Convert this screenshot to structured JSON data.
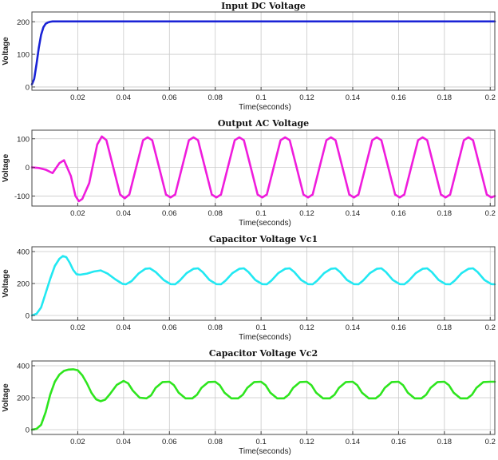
{
  "chart_data": [
    {
      "type": "line",
      "title": "Input DC Voltage",
      "xlabel": "Time(seconds)",
      "ylabel": "Voltage",
      "xlim": [
        0,
        0.202
      ],
      "ylim": [
        -10,
        230
      ],
      "xticks": [
        0.02,
        0.04,
        0.06,
        0.08,
        0.1,
        0.12,
        0.14,
        0.16,
        0.18,
        0.2
      ],
      "xtick_labels": [
        "0.02",
        "0.04",
        "0.06",
        "0.08",
        "0.1",
        "0.12",
        "0.14",
        "0.16",
        "0.18",
        "0.2"
      ],
      "yticks": [
        0,
        100,
        200
      ],
      "ytick_labels": [
        "0",
        "100",
        "200"
      ],
      "grid": true,
      "color": "#1a23d6",
      "series": [
        {
          "x": [
            0,
            0.001,
            0.002,
            0.003,
            0.004,
            0.005,
            0.006,
            0.007,
            0.008,
            0.009,
            0.01,
            0.012,
            0.015,
            0.05,
            0.1,
            0.15,
            0.202
          ],
          "y": [
            8,
            25,
            70,
            120,
            160,
            183,
            194,
            198,
            200,
            201,
            201,
            201,
            201,
            201,
            201,
            201,
            201
          ]
        }
      ]
    },
    {
      "type": "line",
      "title": "Output AC Voltage",
      "xlabel": "Time(seconds)",
      "ylabel": "Voltage",
      "xlim": [
        0,
        0.202
      ],
      "ylim": [
        -135,
        130
      ],
      "xticks": [
        0.02,
        0.04,
        0.06,
        0.08,
        0.1,
        0.12,
        0.14,
        0.16,
        0.18,
        0.2
      ],
      "xtick_labels": [
        "0.02",
        "0.04",
        "0.06",
        "0.08",
        "0.1",
        "0.12",
        "0.14",
        "0.16",
        "0.18",
        "0.2"
      ],
      "yticks": [
        -100,
        0,
        100
      ],
      "ytick_labels": [
        "-100",
        "0",
        "100"
      ],
      "grid": true,
      "color": "#ef1cdc",
      "series": [
        {
          "x": [
            0,
            0.003,
            0.006,
            0.009,
            0.012,
            0.014,
            0.017,
            0.019,
            0.0205,
            0.022,
            0.025,
            0.0285,
            0.0305,
            0.0325,
            0.0355,
            0.0385,
            0.0405,
            0.0425,
            0.0455,
            0.0485,
            0.0505,
            0.0525,
            0.0555,
            0.0585,
            0.0605,
            0.0625,
            0.0655,
            0.0685,
            0.0705,
            0.0725,
            0.0755,
            0.0785,
            0.0805,
            0.0825,
            0.0855,
            0.0885,
            0.0905,
            0.0925,
            0.0955,
            0.0985,
            0.1005,
            0.1025,
            0.1055,
            0.1085,
            0.1105,
            0.1125,
            0.1155,
            0.1185,
            0.1205,
            0.1225,
            0.1255,
            0.1285,
            0.1305,
            0.1325,
            0.1355,
            0.1385,
            0.1405,
            0.1425,
            0.1455,
            0.1485,
            0.1505,
            0.1525,
            0.1555,
            0.1585,
            0.1605,
            0.1625,
            0.1655,
            0.1685,
            0.1705,
            0.1725,
            0.1755,
            0.1785,
            0.1805,
            0.1825,
            0.1855,
            0.1885,
            0.1905,
            0.1925,
            0.1955,
            0.1985,
            0.2005,
            0.202
          ],
          "y": [
            0,
            -2,
            -8,
            -20,
            15,
            25,
            -30,
            -100,
            -118,
            -110,
            -55,
            80,
            108,
            95,
            0,
            -95,
            -108,
            -95,
            0,
            95,
            105,
            95,
            0,
            -95,
            -105,
            -95,
            0,
            95,
            105,
            95,
            0,
            -95,
            -105,
            -95,
            0,
            95,
            105,
            95,
            0,
            -95,
            -105,
            -95,
            0,
            95,
            105,
            95,
            0,
            -95,
            -105,
            -95,
            0,
            95,
            105,
            95,
            0,
            -95,
            -105,
            -95,
            0,
            95,
            105,
            95,
            0,
            -95,
            -105,
            -95,
            0,
            95,
            105,
            95,
            0,
            -95,
            -105,
            -95,
            0,
            95,
            105,
            95,
            0,
            -95,
            -105,
            -100
          ]
        }
      ]
    },
    {
      "type": "line",
      "title": "Capacitor Voltage Vc1",
      "xlabel": "Time(seconds)",
      "ylabel": "Voltage",
      "xlim": [
        0,
        0.202
      ],
      "ylim": [
        -30,
        430
      ],
      "xticks": [
        0.02,
        0.04,
        0.06,
        0.08,
        0.1,
        0.12,
        0.14,
        0.16,
        0.18,
        0.2
      ],
      "xtick_labels": [
        "0.02",
        "0.04",
        "0.06",
        "0.08",
        "0.1",
        "0.12",
        "0.14",
        "0.16",
        "0.18",
        "0.2"
      ],
      "yticks": [
        0,
        200,
        400
      ],
      "ytick_labels": [
        "0",
        "200",
        "400"
      ],
      "grid": true,
      "color": "#22e8f2",
      "series": [
        {
          "x": [
            0,
            0.002,
            0.004,
            0.006,
            0.008,
            0.01,
            0.012,
            0.0135,
            0.015,
            0.0165,
            0.018,
            0.0195,
            0.021,
            0.024,
            0.027,
            0.03,
            0.033,
            0.0365,
            0.0395,
            0.041,
            0.0435,
            0.0465,
            0.0495,
            0.0515,
            0.054,
            0.0575,
            0.0605,
            0.0625,
            0.0645,
            0.0675,
            0.0705,
            0.0725,
            0.0745,
            0.0775,
            0.0805,
            0.0825,
            0.0845,
            0.0875,
            0.0905,
            0.0925,
            0.0945,
            0.0975,
            0.1005,
            0.1025,
            0.1045,
            0.1075,
            0.1105,
            0.1125,
            0.1145,
            0.1175,
            0.1205,
            0.1225,
            0.1245,
            0.1275,
            0.1305,
            0.1325,
            0.1345,
            0.1375,
            0.1405,
            0.1425,
            0.1445,
            0.1475,
            0.1505,
            0.1525,
            0.1545,
            0.1575,
            0.1605,
            0.1625,
            0.1645,
            0.1675,
            0.1705,
            0.1725,
            0.1745,
            0.1775,
            0.1805,
            0.1825,
            0.1845,
            0.1875,
            0.1905,
            0.1925,
            0.1945,
            0.1975,
            0.2005,
            0.202
          ],
          "y": [
            0,
            10,
            50,
            140,
            230,
            310,
            355,
            372,
            365,
            330,
            285,
            258,
            255,
            262,
            275,
            282,
            262,
            225,
            198,
            195,
            215,
            262,
            292,
            295,
            272,
            222,
            196,
            195,
            218,
            265,
            292,
            295,
            272,
            222,
            196,
            195,
            218,
            265,
            292,
            295,
            272,
            222,
            196,
            195,
            218,
            265,
            292,
            295,
            272,
            222,
            196,
            195,
            218,
            265,
            292,
            295,
            272,
            222,
            196,
            195,
            218,
            265,
            292,
            295,
            272,
            222,
            196,
            195,
            218,
            265,
            292,
            295,
            272,
            222,
            196,
            195,
            218,
            265,
            292,
            295,
            272,
            222,
            196,
            195
          ]
        }
      ]
    },
    {
      "type": "line",
      "title": "Capacitor Voltage Vc2",
      "xlabel": "Time(seconds)",
      "ylabel": "Voltage",
      "xlim": [
        0,
        0.202
      ],
      "ylim": [
        -30,
        430
      ],
      "xticks": [
        0.02,
        0.04,
        0.06,
        0.08,
        0.1,
        0.12,
        0.14,
        0.16,
        0.18,
        0.2
      ],
      "xtick_labels": [
        "0.02",
        "0.04",
        "0.06",
        "0.08",
        "0.1",
        "0.12",
        "0.14",
        "0.16",
        "0.18",
        "0.2"
      ],
      "yticks": [
        0,
        200,
        400
      ],
      "ytick_labels": [
        "0",
        "200",
        "400"
      ],
      "grid": true,
      "color": "#2ee51e",
      "series": [
        {
          "x": [
            0,
            0.002,
            0.004,
            0.006,
            0.008,
            0.01,
            0.012,
            0.014,
            0.016,
            0.018,
            0.02,
            0.022,
            0.024,
            0.026,
            0.028,
            0.03,
            0.032,
            0.034,
            0.037,
            0.04,
            0.042,
            0.044,
            0.047,
            0.05,
            0.052,
            0.054,
            0.057,
            0.06,
            0.062,
            0.064,
            0.067,
            0.07,
            0.072,
            0.074,
            0.077,
            0.08,
            0.082,
            0.084,
            0.087,
            0.09,
            0.092,
            0.094,
            0.097,
            0.1,
            0.102,
            0.104,
            0.107,
            0.11,
            0.112,
            0.114,
            0.117,
            0.12,
            0.122,
            0.124,
            0.127,
            0.13,
            0.132,
            0.134,
            0.137,
            0.14,
            0.142,
            0.144,
            0.147,
            0.15,
            0.152,
            0.154,
            0.157,
            0.16,
            0.162,
            0.164,
            0.167,
            0.17,
            0.172,
            0.174,
            0.177,
            0.18,
            0.182,
            0.184,
            0.187,
            0.19,
            0.192,
            0.194,
            0.197,
            0.2,
            0.202
          ],
          "y": [
            0,
            5,
            30,
            110,
            220,
            300,
            345,
            368,
            376,
            378,
            372,
            340,
            290,
            230,
            190,
            178,
            188,
            222,
            280,
            305,
            290,
            245,
            200,
            196,
            215,
            262,
            298,
            300,
            278,
            232,
            196,
            196,
            218,
            262,
            298,
            300,
            278,
            232,
            196,
            196,
            218,
            262,
            298,
            300,
            278,
            232,
            196,
            196,
            218,
            262,
            298,
            300,
            278,
            232,
            196,
            196,
            218,
            262,
            298,
            300,
            278,
            232,
            196,
            196,
            218,
            262,
            298,
            300,
            278,
            232,
            196,
            196,
            218,
            262,
            298,
            300,
            278,
            232,
            196,
            196,
            218,
            262,
            298,
            300,
            300
          ]
        }
      ]
    }
  ]
}
